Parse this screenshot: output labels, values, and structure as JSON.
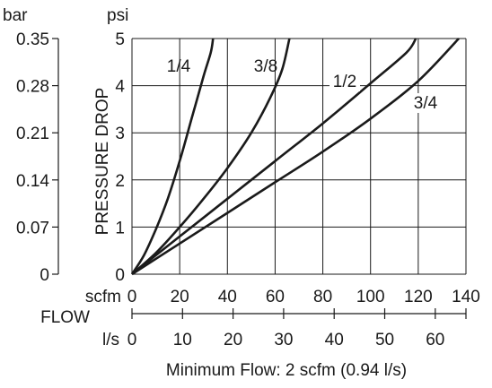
{
  "chart_data": {
    "type": "line",
    "x_unit_primary": "scfm",
    "x_unit_secondary": "l/s",
    "x_axis_title": "FLOW",
    "y_unit_primary": "psi",
    "y_unit_secondary": "bar",
    "ylabel": "PRESSURE DROP",
    "xlim": [
      0,
      140
    ],
    "ylim": [
      0,
      5
    ],
    "x_ticks": [
      "0",
      "20",
      "40",
      "60",
      "80",
      "100",
      "120",
      "140"
    ],
    "x2_ticks": [
      {
        "value": 0,
        "label": "0"
      },
      {
        "value": 10,
        "label": "10"
      },
      {
        "value": 20,
        "label": "20"
      },
      {
        "value": 30,
        "label": "30"
      },
      {
        "value": 40,
        "label": "40"
      },
      {
        "value": 50,
        "label": "50"
      },
      {
        "value": 60,
        "label": "60"
      }
    ],
    "y_ticks": [
      "0",
      "1",
      "2",
      "3",
      "4",
      "5"
    ],
    "y2_ticks": [
      "0",
      "0.07",
      "0.14",
      "0.21",
      "0.28",
      "0.35"
    ],
    "grid": true,
    "caption": "Minimum Flow: 2 scfm (0.94 l/s)",
    "series": [
      {
        "name": "1/4",
        "points": [
          [
            0,
            0
          ],
          [
            5,
            0.4
          ],
          [
            10,
            0.95
          ],
          [
            15,
            1.6
          ],
          [
            20,
            2.4
          ],
          [
            25,
            3.3
          ],
          [
            30,
            4.2
          ],
          [
            33,
            4.7
          ],
          [
            34,
            5.0
          ]
        ]
      },
      {
        "name": "3/8",
        "points": [
          [
            0,
            0
          ],
          [
            10,
            0.45
          ],
          [
            20,
            1.0
          ],
          [
            30,
            1.6
          ],
          [
            40,
            2.25
          ],
          [
            50,
            3.0
          ],
          [
            58,
            3.75
          ],
          [
            63,
            4.35
          ],
          [
            66,
            5.0
          ]
        ]
      },
      {
        "name": "1/2",
        "points": [
          [
            0,
            0
          ],
          [
            20,
            0.8
          ],
          [
            40,
            1.6
          ],
          [
            60,
            2.4
          ],
          [
            80,
            3.2
          ],
          [
            100,
            4.05
          ],
          [
            115,
            4.7
          ],
          [
            119,
            5.0
          ]
        ]
      },
      {
        "name": "3/4",
        "points": [
          [
            0,
            0
          ],
          [
            20,
            0.65
          ],
          [
            40,
            1.3
          ],
          [
            60,
            1.95
          ],
          [
            80,
            2.6
          ],
          [
            100,
            3.3
          ],
          [
            120,
            4.1
          ],
          [
            137,
            5.0
          ]
        ]
      }
    ]
  }
}
